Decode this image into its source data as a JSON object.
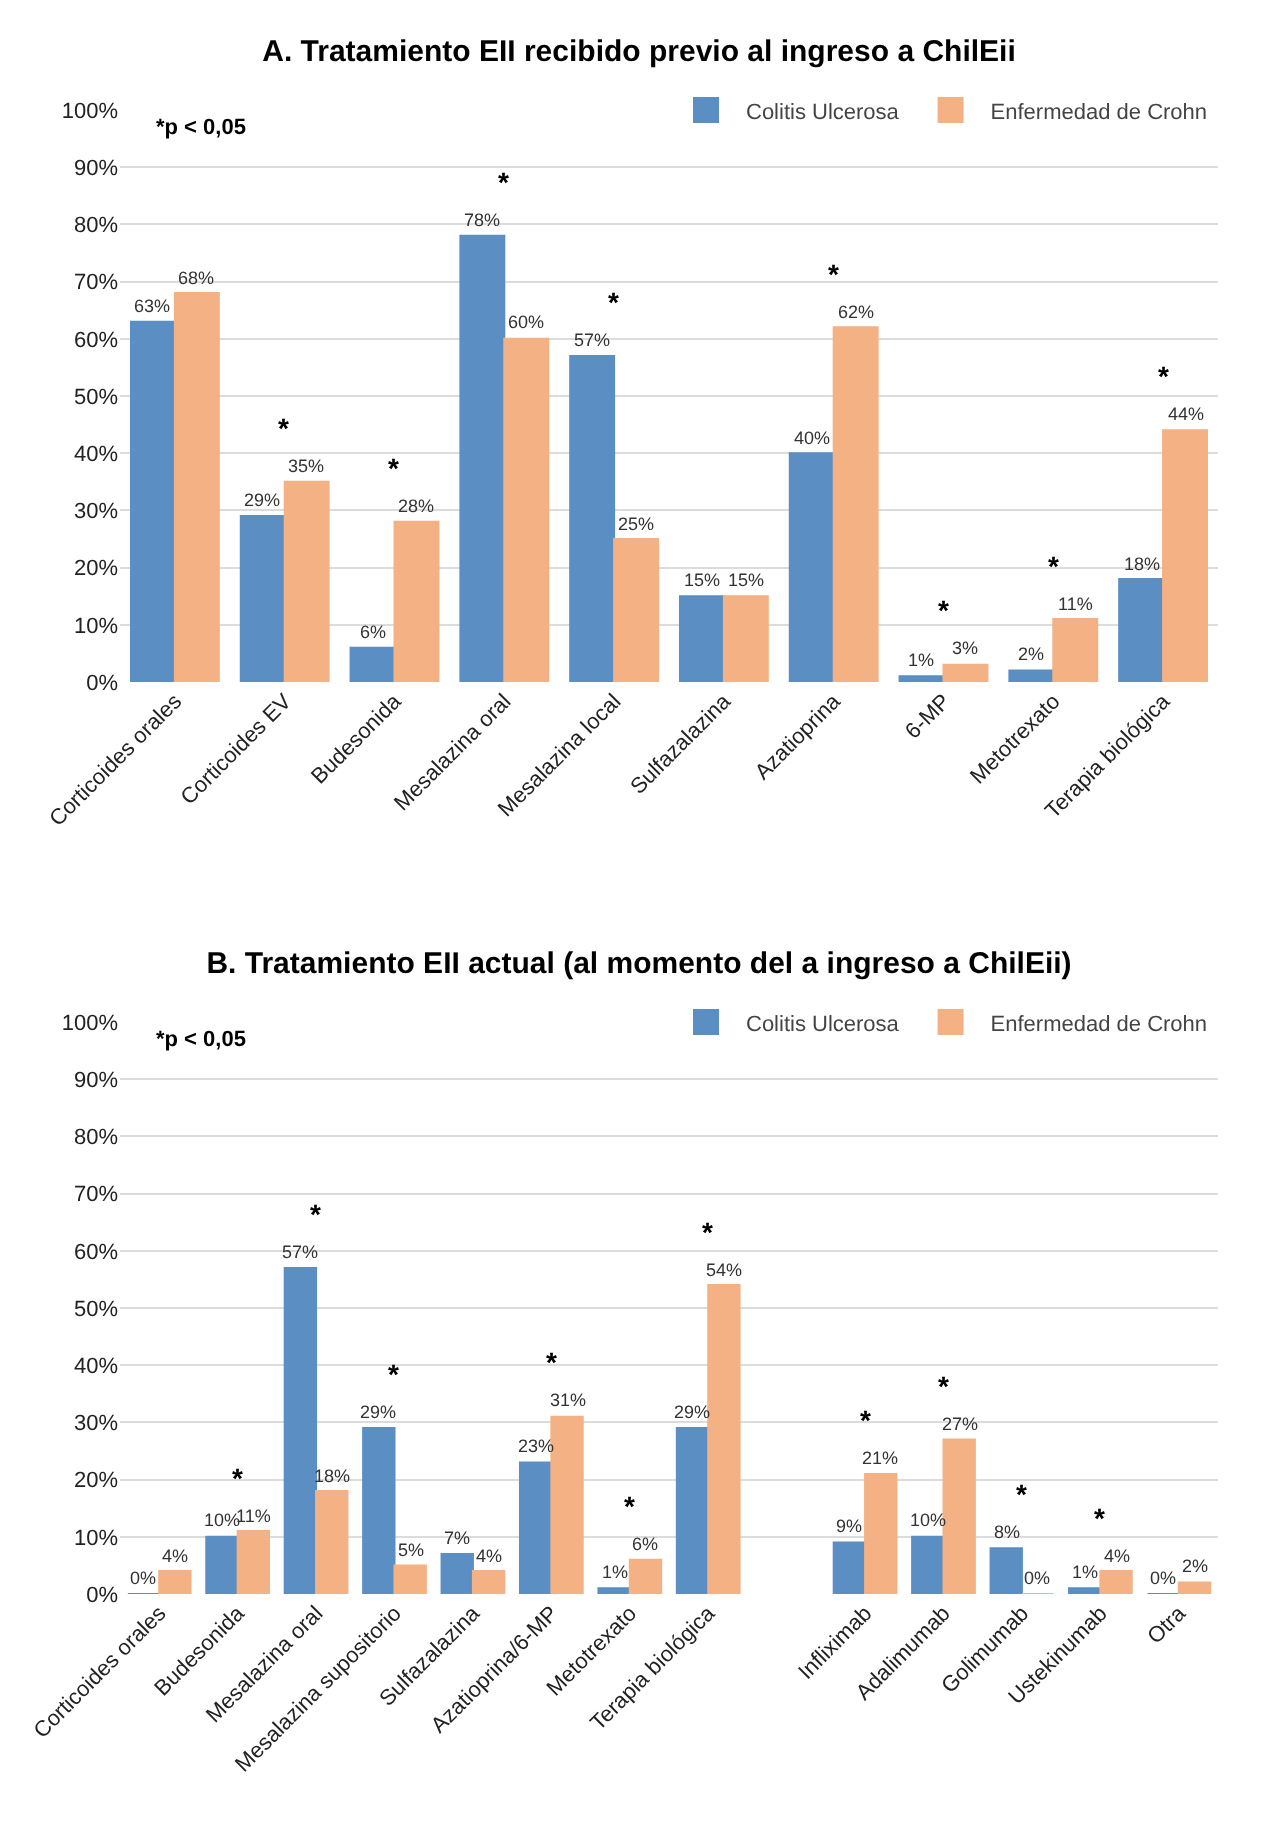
{
  "chart_data": [
    {
      "type": "bar",
      "title": "A. Tratamiento EII recibido previo al ingreso a ChilEii",
      "categories": [
        "Corticoides orales",
        "Corticoides EV",
        "Budesonida",
        "Mesalazina oral",
        "Mesalazina local",
        "Sulfazalazina",
        "Azatioprina",
        "6-MP",
        "Metotrexato",
        "Terapia biológica"
      ],
      "series": [
        {
          "name": "Colitis Ulcerosa",
          "color": "#5b8fc4",
          "values": [
            63,
            29,
            6,
            78,
            57,
            15,
            40,
            1,
            2,
            18
          ],
          "value_labels": [
            "63%",
            "29%",
            "6%",
            "78%",
            "57%",
            "15%",
            "40%",
            "1%",
            "2%",
            "18%"
          ]
        },
        {
          "name": "Enfermedad de Crohn",
          "color": "#f4b183",
          "values": [
            68,
            35,
            28,
            60,
            25,
            15,
            62,
            3,
            11,
            44
          ],
          "value_labels": [
            "68%",
            "35%",
            "28%",
            "60%",
            "25%",
            "15%",
            "62%",
            "3%",
            "11%",
            "44%"
          ]
        }
      ],
      "ylim": [
        0,
        100
      ],
      "yticks": [
        {
          "value": 0,
          "label": "0%"
        },
        {
          "value": 10,
          "label": "10%"
        },
        {
          "value": 20,
          "label": "20%"
        },
        {
          "value": 30,
          "label": "30%"
        },
        {
          "value": 40,
          "label": "40%"
        },
        {
          "value": 50,
          "label": "50%"
        },
        {
          "value": 60,
          "label": "60%"
        },
        {
          "value": 70,
          "label": "70%"
        },
        {
          "value": 80,
          "label": "80%"
        },
        {
          "value": 90,
          "label": "90%"
        },
        {
          "value": 100,
          "label": "100%"
        }
      ],
      "grid": "y",
      "legend": "top right",
      "annotations": [
        "*p < 0,05",
        {
          "text": "*",
          "x": "Corticoides EV",
          "y": 35
        },
        {
          "text": "*",
          "x": "Budesonida",
          "y": 28
        },
        {
          "text": "*",
          "x": "Mesalazina oral",
          "y": 78
        },
        {
          "text": "*",
          "x": "Mesalazina local",
          "y": 57
        },
        {
          "text": "*",
          "x": "Azatioprina",
          "y": 62
        },
        {
          "text": "*",
          "x": "6-MP",
          "y": 3
        },
        {
          "text": "*",
          "x": "Metotrexato",
          "y": 11
        },
        {
          "text": "*",
          "x": "Terapia biológica",
          "y": 44
        }
      ]
    },
    {
      "type": "bar",
      "title": "B. Tratamiento EII actual (al momento del a ingreso a ChilEii)",
      "categories": [
        "Corticoides orales",
        "Budesonida",
        "Mesalazina oral",
        "Mesalazina supositorio",
        "Sulfazalazina",
        "Azatioprina/6-MP",
        "Metotrexato",
        "Terapia biológica",
        null,
        "Infliximab",
        "Adalimumab",
        "Golimumab",
        "Ustekinumab",
        "Otra"
      ],
      "series": [
        {
          "name": "Colitis Ulcerosa",
          "color": "#5b8fc4",
          "values": [
            0,
            10,
            57,
            29,
            7,
            23,
            1,
            29,
            null,
            9,
            10,
            8,
            1,
            0
          ],
          "value_labels": [
            "0%",
            "10%",
            "57%",
            "29%",
            "7%",
            "23%",
            "1%",
            "29%",
            null,
            "9%",
            "10%",
            "8%",
            "1%",
            "0%"
          ]
        },
        {
          "name": "Enfermedad de Crohn",
          "color": "#f4b183",
          "values": [
            4,
            11,
            18,
            5,
            4,
            31,
            6,
            54,
            null,
            21,
            27,
            0,
            4,
            2
          ],
          "value_labels": [
            "4%",
            "11%",
            "18%",
            "5%",
            "4%",
            "31%",
            "6%",
            "54%",
            null,
            "21%",
            "27%",
            "0%",
            "4%",
            "2%"
          ]
        }
      ],
      "ylim": [
        0,
        100
      ],
      "yticks": [
        {
          "value": 0,
          "label": "0%"
        },
        {
          "value": 10,
          "label": "10%"
        },
        {
          "value": 20,
          "label": "20%"
        },
        {
          "value": 30,
          "label": "30%"
        },
        {
          "value": 40,
          "label": "40%"
        },
        {
          "value": 50,
          "label": "50%"
        },
        {
          "value": 60,
          "label": "60%"
        },
        {
          "value": 70,
          "label": "70%"
        },
        {
          "value": 80,
          "label": "80%"
        },
        {
          "value": 90,
          "label": "90%"
        },
        {
          "value": 100,
          "label": "100%"
        }
      ],
      "grid": "y",
      "legend": "top right",
      "annotations": [
        "*p < 0,05",
        {
          "text": "*",
          "x": "Budesonida",
          "y": 11
        },
        {
          "text": "*",
          "x": "Mesalazina oral",
          "y": 57
        },
        {
          "text": "*",
          "x": "Mesalazina supositorio",
          "y": 29
        },
        {
          "text": "*",
          "x": "Azatioprina/6-MP",
          "y": 31
        },
        {
          "text": "*",
          "x": "Metotrexato",
          "y": 6
        },
        {
          "text": "*",
          "x": "Terapia biológica",
          "y": 54
        },
        {
          "text": "*",
          "x": "Infliximab",
          "y": 21
        },
        {
          "text": "*",
          "x": "Adalimumab",
          "y": 27
        },
        {
          "text": "*",
          "x": "Golimumab",
          "y": 8
        },
        {
          "text": "*",
          "x": "Ustekinumab",
          "y": 4
        }
      ]
    }
  ]
}
